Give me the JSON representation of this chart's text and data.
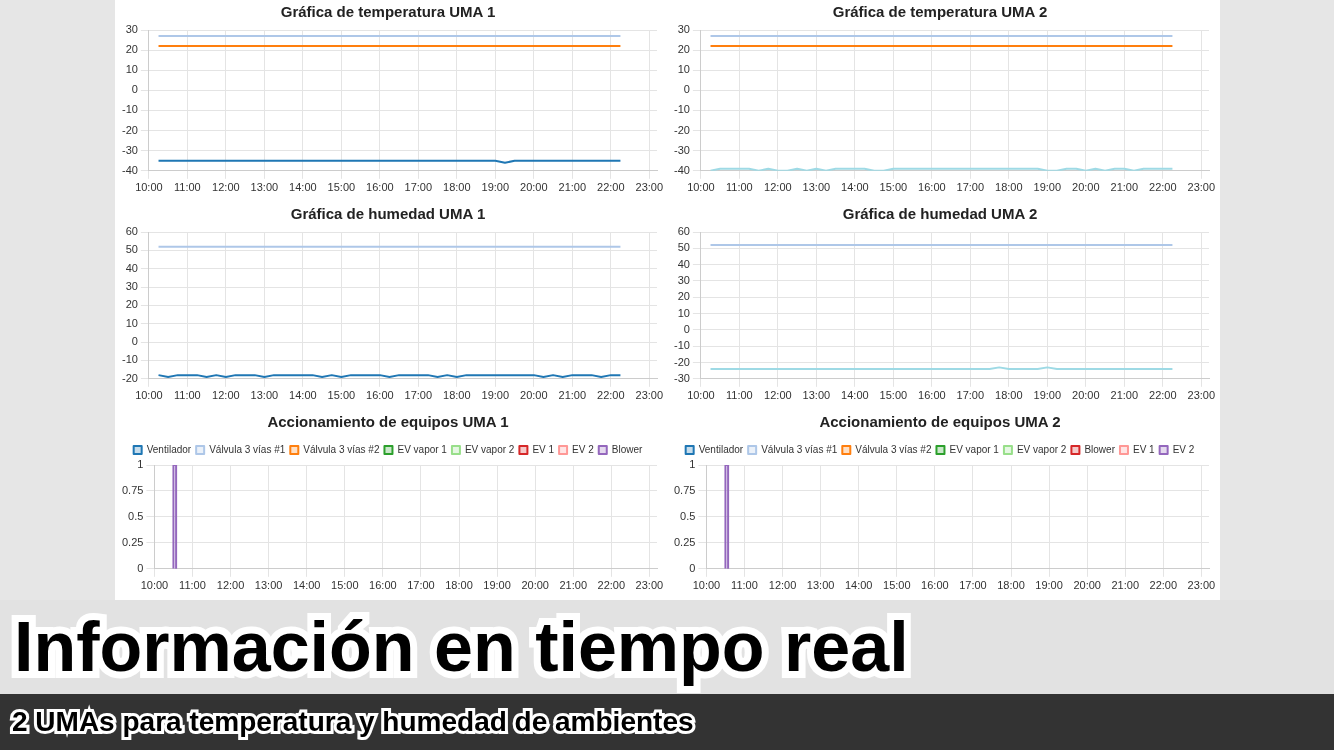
{
  "chart_data": [
    {
      "type": "line",
      "title": "Gráfica de temperatura UMA 1",
      "xlim": [
        10,
        23.2
      ],
      "xticks": [
        {
          "value": 10,
          "label": "10:00"
        },
        {
          "value": 11,
          "label": "11:00"
        },
        {
          "value": 12,
          "label": "12:00"
        },
        {
          "value": 13,
          "label": "13:00"
        },
        {
          "value": 14,
          "label": "14:00"
        },
        {
          "value": 15,
          "label": "15:00"
        },
        {
          "value": 16,
          "label": "16:00"
        },
        {
          "value": 17,
          "label": "17:00"
        },
        {
          "value": 18,
          "label": "18:00"
        },
        {
          "value": 19,
          "label": "19:00"
        },
        {
          "value": 20,
          "label": "20:00"
        },
        {
          "value": 21,
          "label": "21:00"
        },
        {
          "value": 22,
          "label": "22:00"
        },
        {
          "value": 23,
          "label": "23:00"
        }
      ],
      "ylim": [
        -40,
        30
      ],
      "yticks": [
        -40,
        -30,
        -20,
        -10,
        0,
        10,
        20,
        30
      ],
      "grid": true,
      "marker": "none",
      "line_style": "solid",
      "series": [
        {
          "color": "#aec7e8",
          "x": [
            10.25,
            22.25
          ],
          "values": [
            27,
            27
          ]
        },
        {
          "color": "#ff7f0e",
          "x": [
            10.25,
            22.25
          ],
          "values": [
            22,
            22
          ]
        },
        {
          "color": "#1f77b4",
          "x": [
            10.25,
            19,
            19.25,
            19.5,
            22.25
          ],
          "values": [
            -35,
            -35,
            -36,
            -35,
            -35
          ]
        }
      ]
    },
    {
      "type": "line",
      "title": "Gráfica de temperatura UMA 2",
      "xlim": [
        10,
        23.2
      ],
      "xticks": [
        {
          "value": 10,
          "label": "10:00"
        },
        {
          "value": 11,
          "label": "11:00"
        },
        {
          "value": 12,
          "label": "12:00"
        },
        {
          "value": 13,
          "label": "13:00"
        },
        {
          "value": 14,
          "label": "14:00"
        },
        {
          "value": 15,
          "label": "15:00"
        },
        {
          "value": 16,
          "label": "16:00"
        },
        {
          "value": 17,
          "label": "17:00"
        },
        {
          "value": 18,
          "label": "18:00"
        },
        {
          "value": 19,
          "label": "19:00"
        },
        {
          "value": 20,
          "label": "20:00"
        },
        {
          "value": 21,
          "label": "21:00"
        },
        {
          "value": 22,
          "label": "22:00"
        },
        {
          "value": 23,
          "label": "23:00"
        }
      ],
      "ylim": [
        -40,
        30
      ],
      "yticks": [
        -40,
        -30,
        -20,
        -10,
        0,
        10,
        20,
        30
      ],
      "grid": true,
      "marker": "none",
      "line_style": "solid",
      "series": [
        {
          "color": "#aec7e8",
          "x": [
            10.25,
            22.25
          ],
          "values": [
            27,
            27
          ]
        },
        {
          "color": "#ff7f0e",
          "x": [
            10.25,
            22.25
          ],
          "values": [
            22,
            22
          ]
        },
        {
          "color": "#9edae5",
          "x": [
            10.25,
            10.5,
            11.25,
            11.5,
            11.75,
            12,
            12.25,
            12.5,
            12.75,
            13,
            13.25,
            13.5,
            14.25,
            14.5,
            14.75,
            15,
            18.75,
            19,
            19.25,
            19.5,
            19.75,
            20,
            20.25,
            20.5,
            20.75,
            21,
            21.25,
            21.5,
            22.25
          ],
          "values": [
            -40,
            -39,
            -39,
            -40,
            -39,
            -40,
            -40,
            -39,
            -40,
            -39,
            -40,
            -39,
            -39,
            -40,
            -40,
            -39,
            -39,
            -40,
            -40,
            -39,
            -39,
            -40,
            -39,
            -40,
            -39,
            -39,
            -40,
            -39,
            -39
          ]
        }
      ]
    },
    {
      "type": "line",
      "title": "Gráfica de humedad UMA 1",
      "xlim": [
        10,
        23.2
      ],
      "xticks": [
        {
          "value": 10,
          "label": "10:00"
        },
        {
          "value": 11,
          "label": "11:00"
        },
        {
          "value": 12,
          "label": "12:00"
        },
        {
          "value": 13,
          "label": "13:00"
        },
        {
          "value": 14,
          "label": "14:00"
        },
        {
          "value": 15,
          "label": "15:00"
        },
        {
          "value": 16,
          "label": "16:00"
        },
        {
          "value": 17,
          "label": "17:00"
        },
        {
          "value": 18,
          "label": "18:00"
        },
        {
          "value": 19,
          "label": "19:00"
        },
        {
          "value": 20,
          "label": "20:00"
        },
        {
          "value": 21,
          "label": "21:00"
        },
        {
          "value": 22,
          "label": "22:00"
        },
        {
          "value": 23,
          "label": "23:00"
        }
      ],
      "ylim": [
        -20,
        60
      ],
      "yticks": [
        -20,
        -10,
        0,
        10,
        20,
        30,
        40,
        50,
        60
      ],
      "grid": true,
      "marker": "none",
      "line_style": "solid",
      "series": [
        {
          "color": "#aec7e8",
          "x": [
            10.25,
            22.25
          ],
          "values": [
            52,
            52
          ]
        },
        {
          "color": "#1f77b4",
          "x": [
            10.25,
            10.5,
            10.75,
            11.25,
            11.5,
            11.75,
            12,
            12.25,
            12.75,
            13,
            13.25,
            14.25,
            14.5,
            14.75,
            15,
            15.25,
            16,
            16.25,
            16.5,
            17.25,
            17.5,
            17.75,
            18,
            18.25,
            20,
            20.25,
            20.5,
            20.75,
            21,
            21.5,
            21.75,
            22,
            22.25
          ],
          "values": [
            -18,
            -19,
            -18,
            -18,
            -19,
            -18,
            -19,
            -18,
            -18,
            -19,
            -18,
            -18,
            -19,
            -18,
            -19,
            -18,
            -18,
            -19,
            -18,
            -18,
            -19,
            -18,
            -19,
            -18,
            -18,
            -19,
            -18,
            -19,
            -18,
            -18,
            -19,
            -18,
            -18
          ]
        }
      ]
    },
    {
      "type": "line",
      "title": "Gráfica de humedad UMA 2",
      "xlim": [
        10,
        23.2
      ],
      "xticks": [
        {
          "value": 10,
          "label": "10:00"
        },
        {
          "value": 11,
          "label": "11:00"
        },
        {
          "value": 12,
          "label": "12:00"
        },
        {
          "value": 13,
          "label": "13:00"
        },
        {
          "value": 14,
          "label": "14:00"
        },
        {
          "value": 15,
          "label": "15:00"
        },
        {
          "value": 16,
          "label": "16:00"
        },
        {
          "value": 17,
          "label": "17:00"
        },
        {
          "value": 18,
          "label": "18:00"
        },
        {
          "value": 19,
          "label": "19:00"
        },
        {
          "value": 20,
          "label": "20:00"
        },
        {
          "value": 21,
          "label": "21:00"
        },
        {
          "value": 22,
          "label": "22:00"
        },
        {
          "value": 23,
          "label": "23:00"
        }
      ],
      "ylim": [
        -30,
        60
      ],
      "yticks": [
        -30,
        -20,
        -10,
        0,
        10,
        20,
        30,
        40,
        50,
        60
      ],
      "grid": true,
      "marker": "none",
      "line_style": "solid",
      "series": [
        {
          "color": "#aec7e8",
          "x": [
            10.25,
            22.25
          ],
          "values": [
            52,
            52
          ]
        },
        {
          "color": "#9edae5",
          "x": [
            10.25,
            17.5,
            17.75,
            18,
            18.75,
            19,
            19.25,
            22.25
          ],
          "values": [
            -24,
            -24,
            -23,
            -24,
            -24,
            -23,
            -24,
            -24
          ]
        }
      ]
    },
    {
      "type": "line",
      "title": "Accionamiento de equipos UMA 1",
      "xlim": [
        10,
        23.2
      ],
      "xticks": [
        {
          "value": 10,
          "label": "10:00"
        },
        {
          "value": 11,
          "label": "11:00"
        },
        {
          "value": 12,
          "label": "12:00"
        },
        {
          "value": 13,
          "label": "13:00"
        },
        {
          "value": 14,
          "label": "14:00"
        },
        {
          "value": 15,
          "label": "15:00"
        },
        {
          "value": 16,
          "label": "16:00"
        },
        {
          "value": 17,
          "label": "17:00"
        },
        {
          "value": 18,
          "label": "18:00"
        },
        {
          "value": 19,
          "label": "19:00"
        },
        {
          "value": 20,
          "label": "20:00"
        },
        {
          "value": 21,
          "label": "21:00"
        },
        {
          "value": 22,
          "label": "22:00"
        },
        {
          "value": 23,
          "label": "23:00"
        }
      ],
      "ylim": [
        0,
        1
      ],
      "yticks": [
        0,
        0.25,
        0.5,
        0.75,
        1
      ],
      "grid": true,
      "marker": "none",
      "line_style": "solid",
      "legend": "top",
      "series": [
        {
          "name": "Ventilador",
          "color": "#1f77b4",
          "values": [
            null
          ]
        },
        {
          "name": "Válvula 3 vías #1",
          "color": "#aec7e8",
          "values": [
            null
          ]
        },
        {
          "name": "Válvula 3 vías #2",
          "color": "#ff7f0e",
          "values": [
            null
          ]
        },
        {
          "name": "EV vapor 1",
          "color": "#2ca02c",
          "values": [
            null
          ]
        },
        {
          "name": "EV vapor 2",
          "color": "#98df8a",
          "values": [
            null
          ]
        },
        {
          "name": "EV 1",
          "color": "#d62728",
          "values": [
            null
          ]
        },
        {
          "name": "EV 2",
          "color": "#ff9896",
          "values": [
            null
          ]
        },
        {
          "name": "Blower",
          "color": "#9467bd",
          "x": [
            10.5,
            10.5,
            10.57,
            10.57
          ],
          "values": [
            0,
            1,
            1,
            0
          ]
        }
      ]
    },
    {
      "type": "line",
      "title": "Accionamiento de equipos UMA 2",
      "xlim": [
        10,
        23.2
      ],
      "xticks": [
        {
          "value": 10,
          "label": "10:00"
        },
        {
          "value": 11,
          "label": "11:00"
        },
        {
          "value": 12,
          "label": "12:00"
        },
        {
          "value": 13,
          "label": "13:00"
        },
        {
          "value": 14,
          "label": "14:00"
        },
        {
          "value": 15,
          "label": "15:00"
        },
        {
          "value": 16,
          "label": "16:00"
        },
        {
          "value": 17,
          "label": "17:00"
        },
        {
          "value": 18,
          "label": "18:00"
        },
        {
          "value": 19,
          "label": "19:00"
        },
        {
          "value": 20,
          "label": "20:00"
        },
        {
          "value": 21,
          "label": "21:00"
        },
        {
          "value": 22,
          "label": "22:00"
        },
        {
          "value": 23,
          "label": "23:00"
        }
      ],
      "ylim": [
        0,
        1
      ],
      "yticks": [
        0,
        0.25,
        0.5,
        0.75,
        1
      ],
      "grid": true,
      "marker": "none",
      "line_style": "solid",
      "legend": "top",
      "series": [
        {
          "name": "Ventilador",
          "color": "#1f77b4",
          "values": [
            null
          ]
        },
        {
          "name": "Válvula 3 vías #1",
          "color": "#aec7e8",
          "values": [
            null
          ]
        },
        {
          "name": "Válvula 3 vías #2",
          "color": "#ff7f0e",
          "values": [
            null
          ]
        },
        {
          "name": "EV vapor 1",
          "color": "#2ca02c",
          "values": [
            null
          ]
        },
        {
          "name": "EV vapor 2",
          "color": "#98df8a",
          "values": [
            null
          ]
        },
        {
          "name": "Blower",
          "color": "#d62728",
          "values": [
            null
          ]
        },
        {
          "name": "EV 1",
          "color": "#ff9896",
          "values": [
            null
          ]
        },
        {
          "name": "EV 2",
          "color": "#9467bd",
          "x": [
            10.5,
            10.5,
            10.57,
            10.57
          ],
          "values": [
            0,
            1,
            1,
            0
          ]
        }
      ]
    },
    {
      "type": "other",
      "title": "Información en tiempo real",
      "subtitle": "2 UMAs para temperatura y humedad de ambientes"
    }
  ]
}
